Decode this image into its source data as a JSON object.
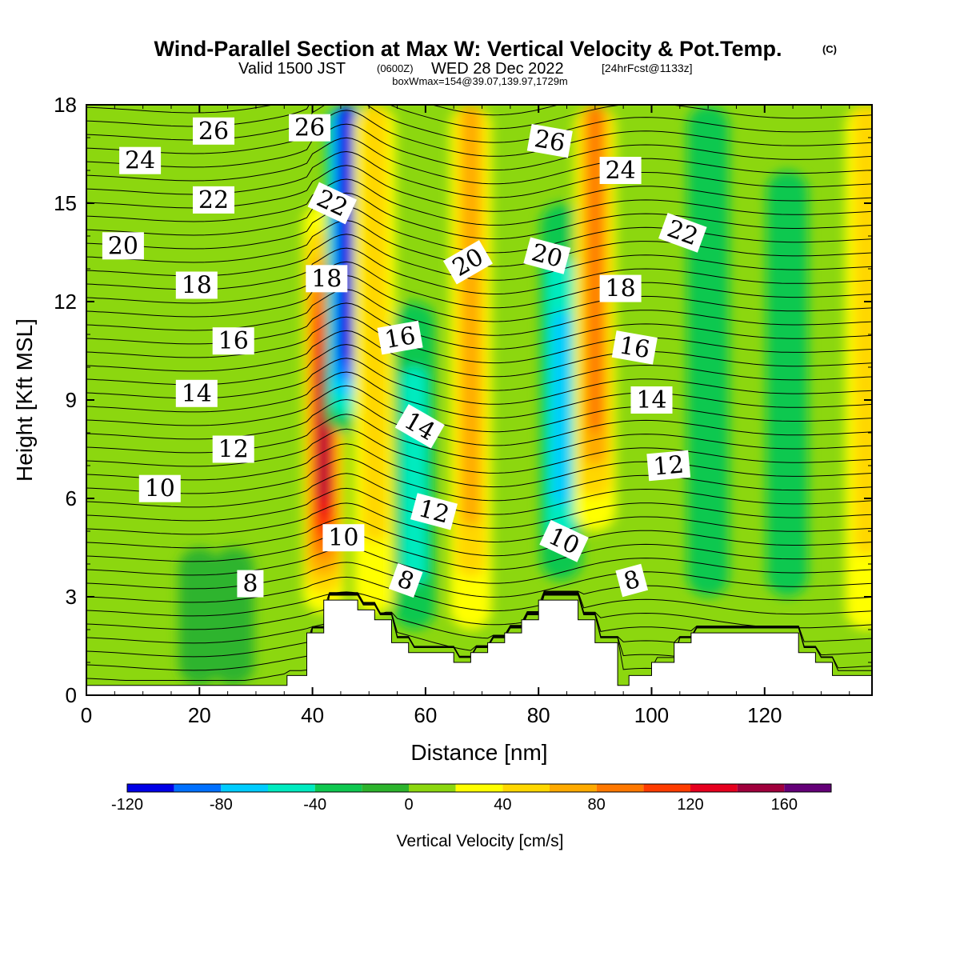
{
  "header": {
    "title": "Wind-Parallel Section at Max W: Vertical Velocity & Pot.Temp.",
    "copyright": "(C)",
    "valid_prefix": "Valid 1500 JST",
    "valid_utc": "(0600Z)",
    "valid_date": "WED 28 Dec 2022",
    "forecast": "[24hrFcst@1133z]",
    "box_info": "boxWmax=154@39.07,139.97,1729m"
  },
  "chart_data": {
    "type": "heatmap",
    "xlabel": "Distance [nm]",
    "ylabel": "Height [Kft MSL]",
    "xlim": [
      0,
      139
    ],
    "ylim": [
      0,
      18
    ],
    "x_ticks": [
      0,
      20,
      40,
      60,
      80,
      100,
      120
    ],
    "y_ticks": [
      0,
      3,
      6,
      9,
      12,
      15,
      18
    ],
    "colorbar": {
      "title": "Vertical Velocity [cm/s]",
      "levels": [
        -120,
        -100,
        -80,
        -60,
        -40,
        -20,
        0,
        20,
        40,
        60,
        80,
        100,
        120,
        140,
        160,
        180
      ],
      "tick_labels": [
        "-120",
        "-80",
        "-40",
        "0",
        "40",
        "80",
        "120",
        "160"
      ],
      "tick_values": [
        -120,
        -80,
        -40,
        0,
        40,
        80,
        120,
        160
      ],
      "colors": [
        "#0000e6",
        "#0070ff",
        "#00ccff",
        "#00ebc0",
        "#0fc850",
        "#2db42d",
        "#8cd70f",
        "#ffff00",
        "#ffd700",
        "#ffaa00",
        "#ff7800",
        "#ff3c00",
        "#e6001e",
        "#a0003c",
        "#640078"
      ]
    },
    "vertical_velocity_features": [
      {
        "x": 42,
        "y_bottom": 2.5,
        "y_top": 15,
        "w": 150
      },
      {
        "x": 46,
        "y_bottom": 8,
        "y_top": 18,
        "w": -125
      },
      {
        "x": 51,
        "y_bottom": 2.5,
        "y_top": 18,
        "w": 50
      },
      {
        "x": 58,
        "y_bottom": 2,
        "y_top": 12,
        "w": -45
      },
      {
        "x": 68,
        "y_bottom": 2,
        "y_top": 18,
        "w": 75
      },
      {
        "x": 84,
        "y_bottom": 3.5,
        "y_top": 15,
        "w": -60
      },
      {
        "x": 90,
        "y_bottom": 5,
        "y_top": 18,
        "w": 80
      },
      {
        "x": 110,
        "y_bottom": 3,
        "y_top": 18,
        "w": -30
      },
      {
        "x": 124,
        "y_bottom": 3,
        "y_top": 16,
        "w": -35
      },
      {
        "x": 138,
        "y_bottom": 2,
        "y_top": 18,
        "w": 45
      },
      {
        "x": 20,
        "y_bottom": 0.3,
        "y_top": 4.5,
        "w": -15
      },
      {
        "x": 26,
        "y_bottom": 0.3,
        "y_top": 4.5,
        "w": -15
      }
    ],
    "terrain": {
      "x": [
        0,
        35.5,
        35.5,
        39,
        39,
        42,
        42,
        48,
        48,
        51,
        51,
        54,
        54,
        57,
        57,
        65,
        65,
        68,
        68,
        71,
        71,
        74,
        74,
        77,
        77,
        80,
        80,
        87,
        87,
        90,
        90,
        94,
        94,
        96,
        96,
        100,
        100,
        104,
        104,
        107,
        107,
        126,
        126,
        129,
        129,
        132,
        132,
        139
      ],
      "y": [
        0.3,
        0.3,
        0.6,
        0.6,
        1.9,
        1.9,
        2.9,
        2.9,
        2.6,
        2.6,
        2.3,
        2.3,
        1.6,
        1.6,
        1.3,
        1.3,
        1.0,
        1.0,
        1.3,
        1.3,
        1.6,
        1.6,
        1.9,
        1.9,
        2.3,
        2.3,
        2.9,
        2.9,
        2.3,
        2.3,
        1.6,
        1.6,
        0.3,
        0.3,
        0.6,
        0.6,
        1.0,
        1.0,
        1.6,
        1.6,
        1.9,
        1.9,
        1.3,
        1.3,
        1.0,
        1.0,
        0.6,
        0.6
      ]
    },
    "theta_labels": [
      {
        "text": "26",
        "x": 22.5,
        "y": 17.2,
        "angle": 0
      },
      {
        "text": "26",
        "x": 39.5,
        "y": 17.3,
        "angle": 0
      },
      {
        "text": "24",
        "x": 9.5,
        "y": 16.3,
        "angle": 0
      },
      {
        "text": "22",
        "x": 22.5,
        "y": 15.1,
        "angle": 0
      },
      {
        "text": "22",
        "x": 43.5,
        "y": 15.0,
        "angle": 25
      },
      {
        "text": "20",
        "x": 6.5,
        "y": 13.7,
        "angle": 0
      },
      {
        "text": "18",
        "x": 19.5,
        "y": 12.5,
        "angle": 0
      },
      {
        "text": "18",
        "x": 42.5,
        "y": 12.7,
        "angle": 0
      },
      {
        "text": "16",
        "x": 26,
        "y": 10.8,
        "angle": 0
      },
      {
        "text": "16",
        "x": 55.5,
        "y": 10.9,
        "angle": -10
      },
      {
        "text": "14",
        "x": 19.5,
        "y": 9.2,
        "angle": 0
      },
      {
        "text": "14",
        "x": 59,
        "y": 8.2,
        "angle": 30
      },
      {
        "text": "12",
        "x": 26,
        "y": 7.5,
        "angle": 0
      },
      {
        "text": "12",
        "x": 61.5,
        "y": 5.6,
        "angle": 15
      },
      {
        "text": "10",
        "x": 13,
        "y": 6.3,
        "angle": 0
      },
      {
        "text": "10",
        "x": 45.5,
        "y": 4.8,
        "angle": 0
      },
      {
        "text": "10",
        "x": 84.5,
        "y": 4.7,
        "angle": 25
      },
      {
        "text": "8",
        "x": 29,
        "y": 3.4,
        "angle": 0
      },
      {
        "text": "8",
        "x": 56.5,
        "y": 3.5,
        "angle": 20
      },
      {
        "text": "8",
        "x": 96.5,
        "y": 3.5,
        "angle": -15
      },
      {
        "text": "26",
        "x": 82,
        "y": 16.9,
        "angle": 10
      },
      {
        "text": "24",
        "x": 94.5,
        "y": 16.0,
        "angle": 0
      },
      {
        "text": "22",
        "x": 105.5,
        "y": 14.1,
        "angle": 20
      },
      {
        "text": "20",
        "x": 67.5,
        "y": 13.2,
        "angle": -30
      },
      {
        "text": "20",
        "x": 81.5,
        "y": 13.4,
        "angle": 15
      },
      {
        "text": "18",
        "x": 94.5,
        "y": 12.4,
        "angle": 0
      },
      {
        "text": "16",
        "x": 97,
        "y": 10.6,
        "angle": 10
      },
      {
        "text": "14",
        "x": 100,
        "y": 9.0,
        "angle": 0
      },
      {
        "text": "12",
        "x": 103,
        "y": 7.0,
        "angle": -5
      }
    ]
  }
}
